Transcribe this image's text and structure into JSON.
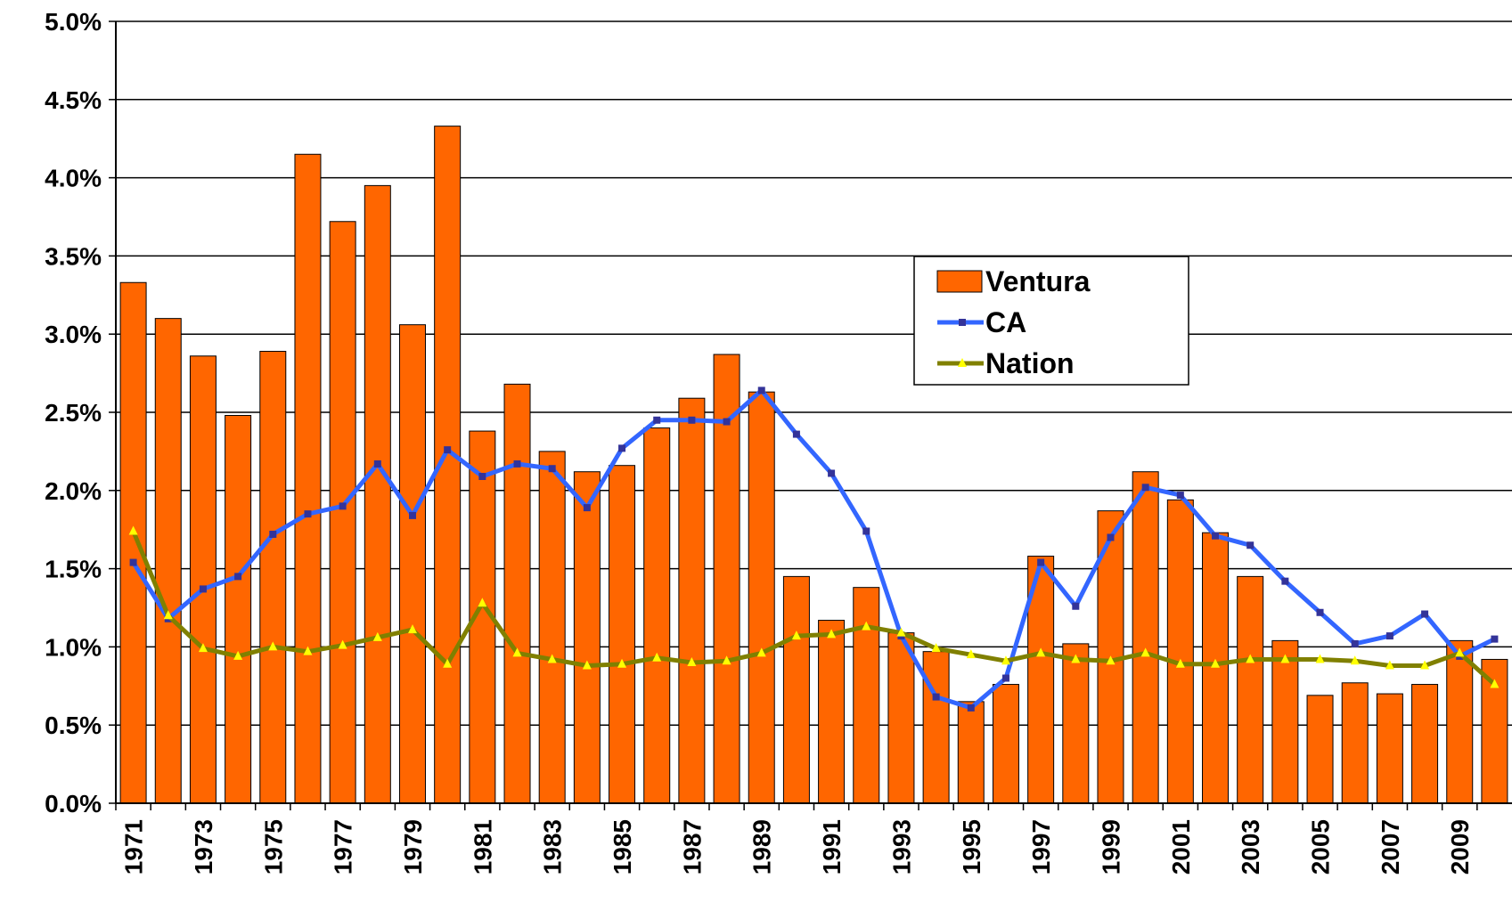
{
  "chart_data": {
    "type": "bar-line",
    "categories": [
      "1971",
      null,
      "1973",
      null,
      "1975",
      null,
      "1977",
      null,
      "1979",
      null,
      "1981",
      null,
      "1983",
      null,
      "1985",
      null,
      "1987",
      null,
      "1989",
      null,
      "1991",
      null,
      "1993",
      null,
      "1995",
      null,
      "1997",
      null,
      "1999",
      null,
      "2001",
      null,
      "2003",
      null,
      "2005",
      null,
      "2007",
      null,
      "2009",
      null
    ],
    "series": [
      {
        "name": "Ventura",
        "type": "bar",
        "color": "#ff6600",
        "values": [
          3.33,
          3.1,
          2.86,
          2.48,
          2.89,
          4.15,
          3.72,
          3.95,
          3.06,
          4.33,
          2.38,
          2.68,
          2.25,
          2.12,
          2.16,
          2.4,
          2.59,
          2.87,
          2.63,
          1.45,
          1.17,
          1.38,
          1.09,
          0.97,
          0.65,
          0.76,
          1.58,
          1.02,
          1.87,
          2.12,
          1.94,
          1.73,
          1.45,
          1.04,
          0.69,
          0.77,
          0.7,
          0.76,
          1.04,
          0.92
        ]
      },
      {
        "name": "CA",
        "type": "line",
        "color": "#3366ff",
        "marker_color": "#333399",
        "values": [
          1.54,
          1.18,
          1.37,
          1.45,
          1.72,
          1.85,
          1.9,
          2.17,
          1.84,
          2.26,
          2.09,
          2.17,
          2.14,
          1.89,
          2.27,
          2.45,
          2.45,
          2.44,
          2.64,
          2.36,
          2.11,
          1.74,
          1.07,
          0.68,
          0.61,
          0.8,
          1.54,
          1.26,
          1.7,
          2.02,
          1.97,
          1.71,
          1.65,
          1.42,
          1.22,
          1.02,
          1.07,
          1.21,
          0.94,
          1.05
        ]
      },
      {
        "name": "Nation",
        "type": "line",
        "color": "#808000",
        "marker_color": "#ffff00",
        "values": [
          1.74,
          1.2,
          0.99,
          0.94,
          1.0,
          0.97,
          1.01,
          1.06,
          1.11,
          0.89,
          1.28,
          0.96,
          0.92,
          0.88,
          0.89,
          0.93,
          0.9,
          0.91,
          0.96,
          1.07,
          1.08,
          1.13,
          1.09,
          0.99,
          0.95,
          0.91,
          0.96,
          0.92,
          0.91,
          0.96,
          0.89,
          0.89,
          0.92,
          0.92,
          0.92,
          0.91,
          0.88,
          0.88,
          0.96,
          0.76
        ]
      }
    ],
    "ylim": [
      0,
      5
    ],
    "yticks": [
      {
        "value": 0,
        "label": "0.0%"
      },
      {
        "value": 0.5,
        "label": "0.5%"
      },
      {
        "value": 1,
        "label": "1.0%"
      },
      {
        "value": 1.5,
        "label": "1.5%"
      },
      {
        "value": 2,
        "label": "2.0%"
      },
      {
        "value": 2.5,
        "label": "2.5%"
      },
      {
        "value": 3,
        "label": "3.0%"
      },
      {
        "value": 3.5,
        "label": "3.5%"
      },
      {
        "value": 4,
        "label": "4.0%"
      },
      {
        "value": 4.5,
        "label": "4.5%"
      },
      {
        "value": 5,
        "label": "5.0%"
      }
    ],
    "grid": true
  }
}
